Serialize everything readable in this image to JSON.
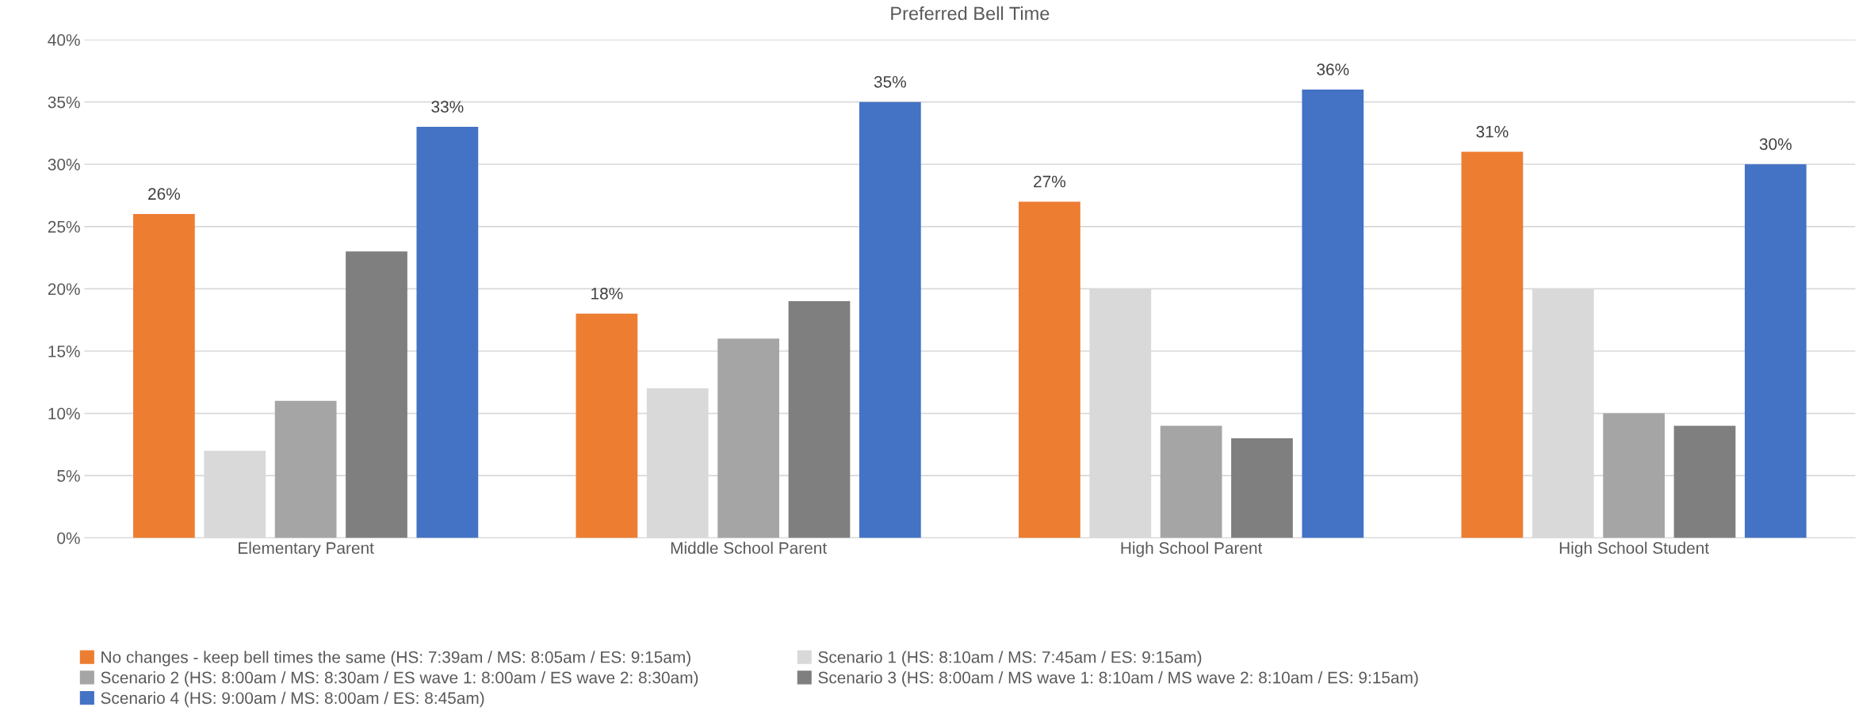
{
  "chart_data": {
    "type": "bar",
    "title": "Preferred Bell Time",
    "categories": [
      "Elementary Parent",
      "Middle School Parent",
      "High School Parent",
      "High School Student"
    ],
    "series": [
      {
        "name": "No changes - keep bell times the same (HS: 7:39am / MS: 8:05am / ES: 9:15am)",
        "color": "#ed7d31",
        "values": [
          26,
          18,
          27,
          31
        ],
        "value_labels": [
          "26%",
          "18%",
          "27%",
          "31%"
        ]
      },
      {
        "name": "Scenario 1 (HS: 8:10am / MS: 7:45am / ES: 9:15am)",
        "color": "#d9d9d9",
        "values": [
          7,
          12,
          20,
          20
        ]
      },
      {
        "name": "Scenario 2 (HS: 8:00am / MS: 8:30am / ES wave 1: 8:00am / ES wave 2: 8:30am)",
        "color": "#a5a5a5",
        "values": [
          11,
          16,
          9,
          10
        ]
      },
      {
        "name": "Scenario 3 (HS: 8:00am / MS wave 1: 8:10am / MS wave 2: 8:10am / ES: 9:15am)",
        "color": "#7f7f7f",
        "values": [
          23,
          19,
          8,
          9
        ]
      },
      {
        "name": "Scenario 4 (HS: 9:00am / MS: 8:00am / ES: 8:45am)",
        "color": "#4472c4",
        "values": [
          33,
          35,
          36,
          30
        ],
        "value_labels": [
          "33%",
          "35%",
          "36%",
          "30%"
        ]
      }
    ],
    "ylim": [
      0,
      40
    ],
    "yticks": [
      {
        "value": 0,
        "label": "0%"
      },
      {
        "value": 5,
        "label": "5%"
      },
      {
        "value": 10,
        "label": "10%"
      },
      {
        "value": 15,
        "label": "15%"
      },
      {
        "value": 20,
        "label": "20%"
      },
      {
        "value": 25,
        "label": "25%"
      },
      {
        "value": 30,
        "label": "30%"
      },
      {
        "value": 35,
        "label": "35%"
      },
      {
        "value": 40,
        "label": "40%"
      }
    ],
    "grid": "y",
    "legend": "bottom"
  }
}
